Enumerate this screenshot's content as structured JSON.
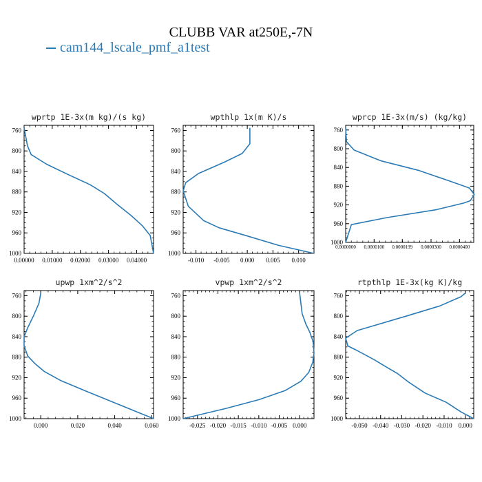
{
  "figure": {
    "title": "CLUBB VAR at250E,-7N",
    "legend": {
      "label": "cam144_lscale_pmf_a1test",
      "color": "#2a7ab5"
    }
  },
  "chart_data": [
    {
      "type": "line",
      "title": "wprtp  1E-3x(m kg)/(s kg)",
      "xlim": [
        0.0,
        0.046
      ],
      "ylim": [
        1000,
        750
      ],
      "xticks": [
        "0.00000",
        "0.01000",
        "0.02000",
        "0.03000",
        "0.04000"
      ],
      "xtick_values": [
        0.0,
        0.01,
        0.02,
        0.03,
        0.04
      ],
      "yticks": [
        "760",
        "800",
        "840",
        "880",
        "920",
        "960",
        "1000"
      ],
      "ytick_values": [
        760,
        800,
        840,
        880,
        920,
        960,
        1000
      ],
      "series": [
        {
          "x": [
            0.0,
            0.0012,
            0.0025,
            0.008,
            0.016,
            0.0235,
            0.0285,
            0.033,
            0.038,
            0.042,
            0.0448,
            0.046
          ],
          "y": [
            755,
            790,
            807,
            826,
            847,
            866,
            883,
            904,
            926,
            946,
            965,
            1000
          ]
        }
      ]
    },
    {
      "type": "line",
      "title": "wpthlp  1x(m K)/s",
      "xlim": [
        -0.0125,
        0.013
      ],
      "ylim": [
        1000,
        750
      ],
      "xticks": [
        "-0.010",
        "-0.005",
        "0.000",
        "0.005",
        "0.010"
      ],
      "xtick_values": [
        -0.01,
        -0.005,
        0.0,
        0.005,
        0.01
      ],
      "yticks": [
        "760",
        "800",
        "840",
        "880",
        "920",
        "960",
        "1000"
      ],
      "ytick_values": [
        760,
        800,
        840,
        880,
        920,
        960,
        1000
      ],
      "series": [
        {
          "x": [
            0.0005,
            0.0005,
            -0.001,
            -0.0045,
            -0.0095,
            -0.012,
            -0.0125,
            -0.0115,
            -0.0085,
            -0.0055,
            0.0,
            0.006,
            0.013
          ],
          "y": [
            755,
            786,
            805,
            822,
            844,
            862,
            878,
            908,
            936,
            950,
            966,
            984,
            1000
          ]
        }
      ]
    },
    {
      "type": "line",
      "title": "wprcp  1E-3x(m/s) (kg/kg)",
      "xlim": [
        0.0,
        4.5e-05
      ],
      "ylim": [
        1000,
        750
      ],
      "xticks": [
        "0.0000000",
        "0.0000100",
        "0.0000199",
        "0.0000300",
        "0.0000400"
      ],
      "xtick_values": [
        0.0,
        1e-05,
        1.99e-05,
        3e-05,
        4e-05
      ],
      "yticks": [
        "760",
        "800",
        "840",
        "880",
        "920",
        "960",
        "1000"
      ],
      "ytick_values": [
        760,
        800,
        840,
        880,
        920,
        960,
        1000
      ],
      "series": [
        {
          "x": [
            0.0,
            3e-07,
            3e-06,
            1.25e-05,
            2.55e-05,
            3.65e-05,
            4.35e-05,
            4.52e-05,
            4.38e-05,
            4.15e-05,
            3.2e-05,
            1.45e-05,
            2e-06,
            0.0
          ],
          "y": [
            755,
            785,
            803,
            826,
            846,
            869,
            884,
            898,
            911,
            916,
            930,
            947,
            962,
            1000
          ]
        }
      ]
    },
    {
      "type": "line",
      "title": "upwp  1xm^2/s^2",
      "xlim": [
        -0.009,
        0.061
      ],
      "ylim": [
        1000,
        750
      ],
      "xticks": [
        "0.000",
        "0.020",
        "0.040",
        "0.060"
      ],
      "xtick_values": [
        0.0,
        0.02,
        0.04,
        0.06
      ],
      "yticks": [
        "760",
        "800",
        "840",
        "880",
        "920",
        "960",
        "1000"
      ],
      "ytick_values": [
        760,
        800,
        840,
        880,
        920,
        960,
        1000
      ],
      "series": [
        {
          "x": [
            0.0,
            -0.001,
            -0.004,
            -0.007,
            -0.009,
            -0.009,
            -0.007,
            -0.003,
            0.002,
            0.011,
            0.025,
            0.042,
            0.061
          ],
          "y": [
            755,
            775,
            800,
            822,
            840,
            858,
            878,
            893,
            908,
            926,
            947,
            972,
            1000
          ]
        }
      ]
    },
    {
      "type": "line",
      "title": "vpwp  1xm^2/s^2",
      "xlim": [
        -0.0285,
        0.0035
      ],
      "ylim": [
        1000,
        750
      ],
      "xticks": [
        "-0.025",
        "-0.020",
        "-0.015",
        "-0.010",
        "-0.005",
        "0.000"
      ],
      "xtick_values": [
        -0.025,
        -0.02,
        -0.015,
        -0.01,
        -0.005,
        0.0
      ],
      "yticks": [
        "760",
        "800",
        "840",
        "880",
        "920",
        "960",
        "1000"
      ],
      "ytick_values": [
        760,
        800,
        840,
        880,
        920,
        960,
        1000
      ],
      "series": [
        {
          "x": [
            0.0,
            0.0003,
            0.0006,
            0.0015,
            0.0025,
            0.0033,
            0.0035,
            0.0032,
            0.0022,
            0.0003,
            -0.0035,
            -0.01,
            -0.018,
            -0.0285
          ],
          "y": [
            755,
            775,
            795,
            815,
            832,
            850,
            872,
            890,
            910,
            927,
            945,
            963,
            980,
            1000
          ]
        }
      ]
    },
    {
      "type": "line",
      "title": "rtpthlp  1E-3x(kg K)/kg",
      "xlim": [
        -0.0565,
        0.004
      ],
      "ylim": [
        1000,
        750
      ],
      "xticks": [
        "-0.050",
        "-0.040",
        "-0.030",
        "-0.020",
        "-0.010",
        "0.000"
      ],
      "xtick_values": [
        -0.05,
        -0.04,
        -0.03,
        -0.02,
        -0.01,
        0.0
      ],
      "yticks": [
        "760",
        "800",
        "840",
        "880",
        "920",
        "960",
        "1000"
      ],
      "ytick_values": [
        760,
        800,
        840,
        880,
        920,
        960,
        1000
      ],
      "series": [
        {
          "x": [
            0.0,
            -0.002,
            -0.012,
            -0.028,
            -0.051,
            -0.0565,
            -0.0555,
            -0.052,
            -0.043,
            -0.037,
            -0.032,
            -0.027,
            -0.019,
            -0.009,
            -0.002,
            0.004
          ],
          "y": [
            755,
            762,
            780,
            800,
            828,
            843,
            858,
            865,
            885,
            900,
            912,
            928,
            950,
            968,
            987,
            1000
          ]
        }
      ]
    }
  ]
}
